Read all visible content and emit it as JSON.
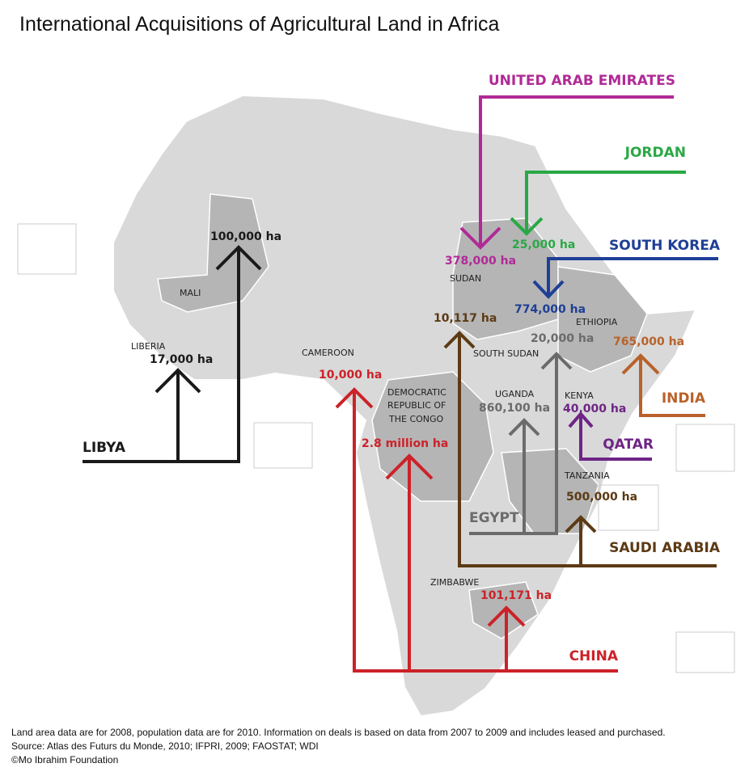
{
  "title": "International Acquisitions of Agricultural Land in Africa",
  "investors": [
    {
      "name": "LIBYA",
      "deals": [
        "100,000 ha",
        "17,000 ha"
      ]
    },
    {
      "name": "UNITED ARAB EMIRATES",
      "deals": [
        "378,000 ha"
      ]
    },
    {
      "name": "JORDAN",
      "deals": [
        "25,000 ha"
      ]
    },
    {
      "name": "SOUTH KOREA",
      "deals": [
        "774,000 ha"
      ]
    },
    {
      "name": "INDIA",
      "deals": [
        "765,000 ha"
      ]
    },
    {
      "name": "QATAR",
      "deals": [
        "40,000 ha"
      ]
    },
    {
      "name": "SAUDI ARABIA",
      "deals": [
        "10,117 ha",
        "500,000 ha"
      ]
    },
    {
      "name": "EGYPT",
      "deals": [
        "20,000 ha",
        "860,100 ha"
      ]
    },
    {
      "name": "CHINA",
      "deals": [
        "10,000 ha",
        "2.8 million ha",
        "101,171 ha"
      ]
    }
  ],
  "countries": [
    "MALI",
    "LIBERIA",
    "CAMEROON",
    [
      "DEMOCRATIC",
      "REPUBLIC OF",
      "THE CONGO"
    ],
    "SUDAN",
    "SOUTH SUDAN",
    "ETHIOPIA",
    "UGANDA",
    "KENYA",
    "TANZANIA",
    "ZIMBABWE"
  ],
  "footnote": [
    "Land area data are for 2008, population data are for 2010. Information on deals is based on data from 2007 to 2009 and includes leased and purchased.",
    "Source: Atlas des Futurs du Monde, 2010; IFPRI, 2009; FAOSTAT; WDI",
    "©Mo Ibrahim Foundation"
  ]
}
